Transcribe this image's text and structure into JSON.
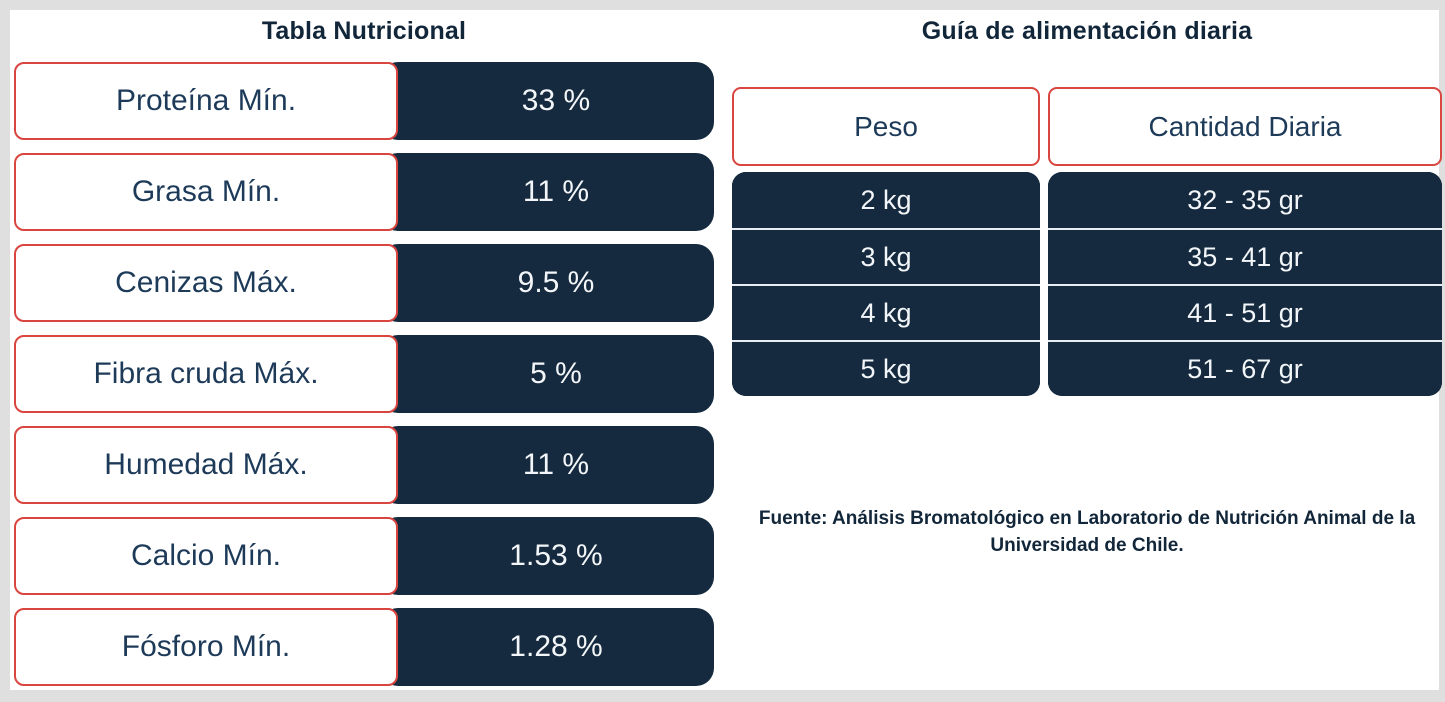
{
  "colors": {
    "frame_gray": "#dfdfdf",
    "canvas_white": "#ffffff",
    "navy": "#152a3e",
    "red_border": "#d9453f",
    "text_navy": "#1d3a59",
    "cell_text": "#f3f6f9",
    "row_separator": "#e7edf3"
  },
  "nutrition_table": {
    "title": "Tabla Nutricional",
    "rows": [
      {
        "label": "Proteína Mín.",
        "value": "33 %"
      },
      {
        "label": "Grasa Mín.",
        "value": "11 %"
      },
      {
        "label": "Cenizas Máx.",
        "value": "9.5 %"
      },
      {
        "label": "Fibra cruda Máx.",
        "value": "5 %"
      },
      {
        "label": "Humedad Máx.",
        "value": "11 %"
      },
      {
        "label": "Calcio Mín.",
        "value": "1.53 %"
      },
      {
        "label": "Fósforo Mín.",
        "value": "1.28 %"
      }
    ]
  },
  "feeding_guide": {
    "title": "Guía de alimentación diaria",
    "columns": [
      "Peso",
      "Cantidad Diaria"
    ],
    "rows": [
      {
        "peso": "2 kg",
        "cantidad": "32 - 35 gr"
      },
      {
        "peso": "3 kg",
        "cantidad": "35 - 41 gr"
      },
      {
        "peso": "4 kg",
        "cantidad": "41 - 51 gr"
      },
      {
        "peso": "5 kg",
        "cantidad": "51 - 67 gr"
      }
    ],
    "source": "Fuente: Análisis Bromatológico en Laboratorio de Nutrición Animal de la Universidad de Chile."
  }
}
